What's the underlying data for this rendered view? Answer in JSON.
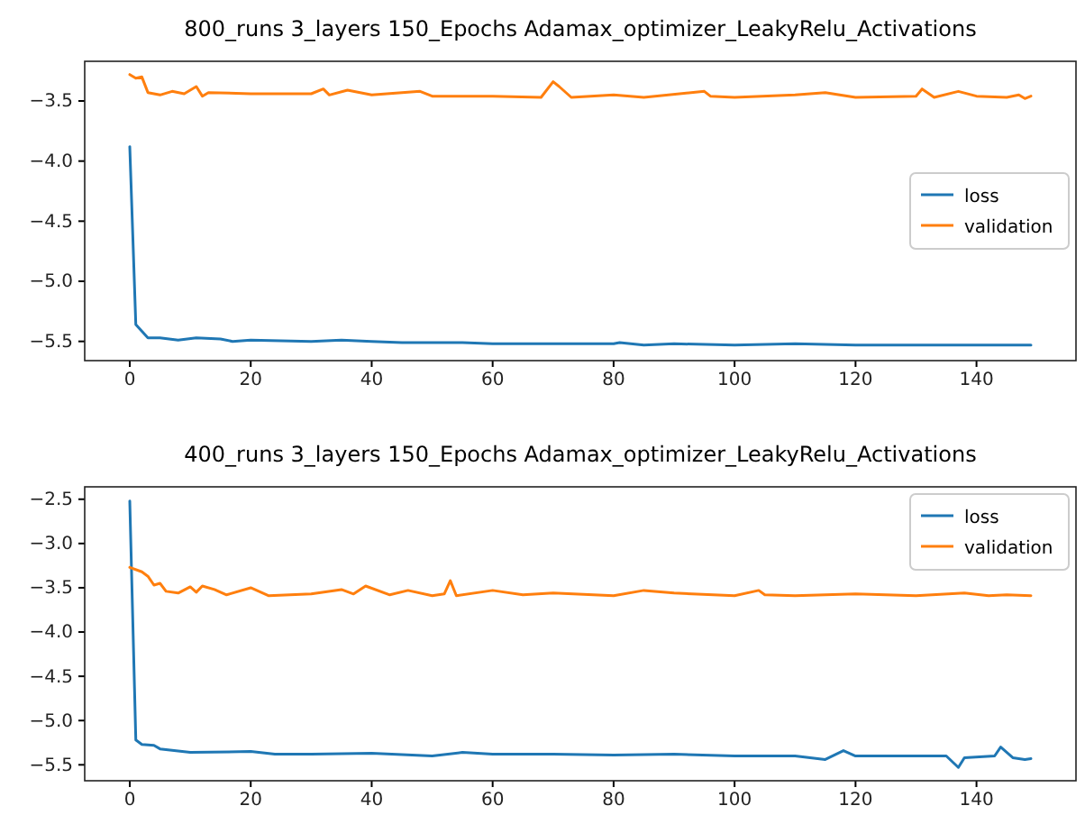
{
  "chart_data": [
    {
      "type": "line",
      "title": "800_runs 3_layers 150_Epochs Adamax_optimizer_LeakyRelu_Activations",
      "xlim": [
        -7.45,
        156.45
      ],
      "xticks": [
        0,
        20,
        40,
        60,
        80,
        100,
        120,
        140
      ],
      "ylim": [
        -5.66,
        -3.17
      ],
      "yticks": [
        {
          "value": -5.5,
          "label": "−5.5"
        },
        {
          "value": -5,
          "label": "−5.0"
        },
        {
          "value": -4.5,
          "label": "−4.5"
        },
        {
          "value": -4,
          "label": "−4.0"
        },
        {
          "value": -3.5,
          "label": "−3.5"
        }
      ],
      "legend": "right",
      "grid": false,
      "series": [
        {
          "name": "loss",
          "color": "#1f77b4",
          "x": [
            0,
            1,
            3,
            5,
            8,
            11,
            15,
            17,
            20,
            30,
            35,
            40,
            45,
            55,
            60,
            70,
            80,
            81,
            85,
            90,
            100,
            110,
            120,
            130,
            140,
            149
          ],
          "values": [
            -3.88,
            -5.36,
            -5.47,
            -5.47,
            -5.49,
            -5.47,
            -5.48,
            -5.5,
            -5.49,
            -5.5,
            -5.49,
            -5.5,
            -5.51,
            -5.51,
            -5.52,
            -5.52,
            -5.52,
            -5.51,
            -5.53,
            -5.52,
            -5.53,
            -5.52,
            -5.53,
            -5.53,
            -5.53,
            -5.53
          ]
        },
        {
          "name": "validation",
          "color": "#ff7f0e",
          "x": [
            0,
            1,
            2,
            3,
            5,
            7,
            9,
            11,
            12,
            13,
            20,
            30,
            32,
            33,
            36,
            40,
            48,
            50,
            60,
            68,
            70,
            71,
            73,
            80,
            85,
            95,
            96,
            100,
            110,
            115,
            120,
            130,
            131,
            133,
            137,
            140,
            145,
            147,
            148,
            149
          ],
          "values": [
            -3.28,
            -3.31,
            -3.3,
            -3.43,
            -3.45,
            -3.42,
            -3.44,
            -3.38,
            -3.46,
            -3.43,
            -3.44,
            -3.44,
            -3.4,
            -3.45,
            -3.41,
            -3.45,
            -3.42,
            -3.46,
            -3.46,
            -3.47,
            -3.34,
            -3.38,
            -3.47,
            -3.45,
            -3.47,
            -3.42,
            -3.46,
            -3.47,
            -3.45,
            -3.43,
            -3.47,
            -3.46,
            -3.4,
            -3.47,
            -3.42,
            -3.46,
            -3.47,
            -3.45,
            -3.48,
            -3.46
          ]
        }
      ]
    },
    {
      "type": "line",
      "title": "400_runs 3_layers 150_Epochs Adamax_optimizer_LeakyRelu_Activations",
      "xlim": [
        -7.45,
        156.45
      ],
      "xticks": [
        0,
        20,
        40,
        60,
        80,
        100,
        120,
        140
      ],
      "ylim": [
        -5.68,
        -2.36
      ],
      "yticks": [
        {
          "value": -5.5,
          "label": "−5.5"
        },
        {
          "value": -5,
          "label": "−5.0"
        },
        {
          "value": -4.5,
          "label": "−4.5"
        },
        {
          "value": -4,
          "label": "−4.0"
        },
        {
          "value": -3.5,
          "label": "−3.5"
        },
        {
          "value": -3,
          "label": "−3.0"
        },
        {
          "value": -2.5,
          "label": "−2.5"
        }
      ],
      "legend": "top right",
      "grid": false,
      "series": [
        {
          "name": "loss",
          "color": "#1f77b4",
          "x": [
            0,
            1,
            2,
            4,
            5,
            10,
            20,
            24,
            30,
            40,
            50,
            55,
            60,
            70,
            80,
            90,
            100,
            110,
            115,
            118,
            120,
            130,
            135,
            137,
            138,
            143,
            144,
            146,
            148,
            149
          ],
          "values": [
            -2.52,
            -5.22,
            -5.27,
            -5.28,
            -5.32,
            -5.36,
            -5.35,
            -5.38,
            -5.38,
            -5.37,
            -5.4,
            -5.36,
            -5.38,
            -5.38,
            -5.39,
            -5.38,
            -5.4,
            -5.4,
            -5.44,
            -5.34,
            -5.4,
            -5.4,
            -5.4,
            -5.53,
            -5.42,
            -5.4,
            -5.3,
            -5.42,
            -5.44,
            -5.43
          ]
        },
        {
          "name": "validation",
          "color": "#ff7f0e",
          "x": [
            0,
            2,
            3,
            4,
            5,
            6,
            8,
            10,
            11,
            12,
            14,
            16,
            20,
            23,
            30,
            35,
            37,
            39,
            43,
            46,
            50,
            52,
            53,
            54,
            60,
            65,
            70,
            80,
            85,
            90,
            100,
            104,
            105,
            110,
            120,
            130,
            138,
            142,
            145,
            149
          ],
          "values": [
            -3.27,
            -3.32,
            -3.37,
            -3.47,
            -3.45,
            -3.54,
            -3.56,
            -3.49,
            -3.55,
            -3.48,
            -3.52,
            -3.58,
            -3.5,
            -3.59,
            -3.57,
            -3.52,
            -3.57,
            -3.48,
            -3.58,
            -3.53,
            -3.59,
            -3.57,
            -3.42,
            -3.59,
            -3.53,
            -3.58,
            -3.56,
            -3.59,
            -3.53,
            -3.56,
            -3.59,
            -3.53,
            -3.58,
            -3.59,
            -3.57,
            -3.59,
            -3.56,
            -3.59,
            -3.58,
            -3.59
          ]
        }
      ]
    }
  ]
}
